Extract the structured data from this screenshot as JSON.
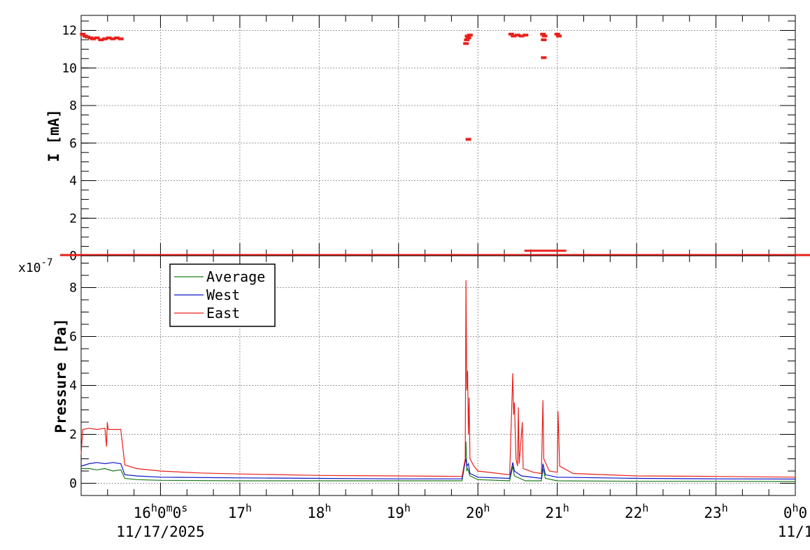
{
  "chart_data": [
    {
      "type": "scatter",
      "title": "",
      "ylabel": "I [mA]",
      "ylim": [
        0,
        12.8
      ],
      "yticks": [
        0,
        2,
        4,
        6,
        8,
        10,
        12
      ],
      "grid": true,
      "series": [
        {
          "color": "#e8201b",
          "points": [
            [
              15.02,
              11.8
            ],
            [
              15.05,
              11.7
            ],
            [
              15.08,
              11.65
            ],
            [
              15.12,
              11.6
            ],
            [
              15.15,
              11.55
            ],
            [
              15.2,
              11.6
            ],
            [
              15.25,
              11.5
            ],
            [
              15.3,
              11.55
            ],
            [
              15.35,
              11.6
            ],
            [
              15.4,
              11.55
            ],
            [
              15.45,
              11.6
            ],
            [
              15.5,
              11.55
            ],
            [
              19.85,
              11.3
            ],
            [
              19.86,
              11.5
            ],
            [
              19.87,
              11.7
            ],
            [
              19.88,
              11.6
            ],
            [
              19.9,
              11.75
            ],
            [
              19.88,
              6.2
            ],
            [
              20.42,
              11.8
            ],
            [
              20.45,
              11.7
            ],
            [
              20.5,
              11.75
            ],
            [
              20.55,
              11.7
            ],
            [
              20.6,
              11.75
            ],
            [
              20.82,
              11.8
            ],
            [
              20.83,
              11.5
            ],
            [
              20.84,
              11.7
            ],
            [
              20.83,
              10.55
            ],
            [
              21.0,
              11.8
            ],
            [
              21.02,
              11.7
            ],
            [
              15.0,
              0.02
            ],
            [
              15.5,
              0.02
            ],
            [
              16.0,
              0.02
            ],
            [
              16.5,
              0.02
            ],
            [
              17.0,
              0.02
            ],
            [
              17.5,
              0.02
            ],
            [
              18.0,
              0.02
            ],
            [
              18.5,
              0.02
            ],
            [
              19.0,
              0.02
            ],
            [
              19.5,
              0.02
            ],
            [
              20.0,
              0.02
            ],
            [
              20.5,
              0.02
            ],
            [
              20.85,
              0.25
            ],
            [
              21.0,
              0.02
            ],
            [
              21.5,
              0.02
            ],
            [
              22.0,
              0.02
            ],
            [
              22.5,
              0.02
            ],
            [
              23.0,
              0.02
            ],
            [
              23.5,
              0.02
            ],
            [
              24.0,
              0.02
            ]
          ]
        }
      ]
    },
    {
      "type": "line",
      "title": "",
      "ylabel": "Pressure [Pa]",
      "yexponent": "x10",
      "yexponent_power": "-7",
      "ylim": [
        -0.5,
        9.3
      ],
      "yticks": [
        0,
        2,
        4,
        6,
        8
      ],
      "grid": true,
      "legend_position": "top-left",
      "x_time_labels": [
        {
          "x": 16,
          "h": "16",
          "rest": "0",
          "rest_sup": "m",
          "rest2": "0",
          "rest2_sup": "s"
        },
        {
          "x": 17,
          "h": "17"
        },
        {
          "x": 18,
          "h": "18"
        },
        {
          "x": 19,
          "h": "19"
        },
        {
          "x": 20,
          "h": "20"
        },
        {
          "x": 21,
          "h": "21"
        },
        {
          "x": 22,
          "h": "22"
        },
        {
          "x": 23,
          "h": "23"
        },
        {
          "x": 24,
          "h": "0",
          "rest": "0"
        }
      ],
      "x_date_labels": [
        {
          "x": 16,
          "text": "11/17/2025"
        },
        {
          "x": 24,
          "text": "11/1"
        }
      ],
      "xlim": [
        15.0,
        24.0
      ],
      "series": [
        {
          "name": "Average",
          "color": "#1a7a1a",
          "points": [
            [
              15.0,
              0.6
            ],
            [
              15.1,
              0.6
            ],
            [
              15.2,
              0.55
            ],
            [
              15.3,
              0.6
            ],
            [
              15.4,
              0.5
            ],
            [
              15.5,
              0.55
            ],
            [
              15.55,
              0.2
            ],
            [
              15.7,
              0.15
            ],
            [
              16.0,
              0.12
            ],
            [
              17.0,
              0.1
            ],
            [
              18.0,
              0.1
            ],
            [
              19.0,
              0.1
            ],
            [
              19.8,
              0.1
            ],
            [
              19.84,
              0.9
            ],
            [
              19.85,
              1.7
            ],
            [
              19.86,
              0.5
            ],
            [
              19.87,
              0.6
            ],
            [
              19.9,
              0.3
            ],
            [
              20.0,
              0.15
            ],
            [
              20.4,
              0.1
            ],
            [
              20.44,
              0.7
            ],
            [
              20.46,
              0.3
            ],
            [
              20.6,
              0.1
            ],
            [
              20.8,
              0.1
            ],
            [
              20.82,
              0.6
            ],
            [
              20.85,
              0.2
            ],
            [
              21.0,
              0.1
            ],
            [
              22.0,
              0.08
            ],
            [
              23.0,
              0.08
            ],
            [
              24.0,
              0.07
            ]
          ]
        },
        {
          "name": "West",
          "color": "#0a14c8",
          "points": [
            [
              15.0,
              0.7
            ],
            [
              15.1,
              0.8
            ],
            [
              15.2,
              0.85
            ],
            [
              15.3,
              0.8
            ],
            [
              15.4,
              0.85
            ],
            [
              15.5,
              0.8
            ],
            [
              15.55,
              0.35
            ],
            [
              15.7,
              0.3
            ],
            [
              16.0,
              0.25
            ],
            [
              17.0,
              0.22
            ],
            [
              18.0,
              0.2
            ],
            [
              19.0,
              0.18
            ],
            [
              19.8,
              0.18
            ],
            [
              19.84,
              0.9
            ],
            [
              19.85,
              1.0
            ],
            [
              19.86,
              0.7
            ],
            [
              19.88,
              0.8
            ],
            [
              19.9,
              0.4
            ],
            [
              20.0,
              0.25
            ],
            [
              20.4,
              0.2
            ],
            [
              20.44,
              0.85
            ],
            [
              20.46,
              0.5
            ],
            [
              20.55,
              0.3
            ],
            [
              20.8,
              0.2
            ],
            [
              20.82,
              0.8
            ],
            [
              20.85,
              0.35
            ],
            [
              21.0,
              0.25
            ],
            [
              22.0,
              0.2
            ],
            [
              23.0,
              0.18
            ],
            [
              24.0,
              0.17
            ]
          ]
        },
        {
          "name": "East",
          "color": "#e8201b",
          "points": [
            [
              15.0,
              1.2
            ],
            [
              15.02,
              2.2
            ],
            [
              15.1,
              2.25
            ],
            [
              15.2,
              2.2
            ],
            [
              15.3,
              2.25
            ],
            [
              15.32,
              1.5
            ],
            [
              15.33,
              2.5
            ],
            [
              15.34,
              2.2
            ],
            [
              15.45,
              2.2
            ],
            [
              15.5,
              2.2
            ],
            [
              15.55,
              0.75
            ],
            [
              15.7,
              0.6
            ],
            [
              16.0,
              0.5
            ],
            [
              16.5,
              0.42
            ],
            [
              17.0,
              0.38
            ],
            [
              18.0,
              0.32
            ],
            [
              19.0,
              0.3
            ],
            [
              19.8,
              0.28
            ],
            [
              19.84,
              1.0
            ],
            [
              19.85,
              8.3
            ],
            [
              19.86,
              3.8
            ],
            [
              19.87,
              4.6
            ],
            [
              19.88,
              2.0
            ],
            [
              19.89,
              3.5
            ],
            [
              19.9,
              1.0
            ],
            [
              19.95,
              0.7
            ],
            [
              20.0,
              0.5
            ],
            [
              20.4,
              0.35
            ],
            [
              20.44,
              4.5
            ],
            [
              20.45,
              2.8
            ],
            [
              20.46,
              3.3
            ],
            [
              20.48,
              1.0
            ],
            [
              20.5,
              0.7
            ],
            [
              20.51,
              3.1
            ],
            [
              20.52,
              0.8
            ],
            [
              20.56,
              2.5
            ],
            [
              20.57,
              0.6
            ],
            [
              20.7,
              0.45
            ],
            [
              20.8,
              0.4
            ],
            [
              20.82,
              3.4
            ],
            [
              20.83,
              1.0
            ],
            [
              20.9,
              0.5
            ],
            [
              21.0,
              0.45
            ],
            [
              21.01,
              2.95
            ],
            [
              21.03,
              0.7
            ],
            [
              21.2,
              0.4
            ],
            [
              22.0,
              0.3
            ],
            [
              23.0,
              0.28
            ],
            [
              24.0,
              0.25
            ]
          ]
        }
      ]
    }
  ]
}
